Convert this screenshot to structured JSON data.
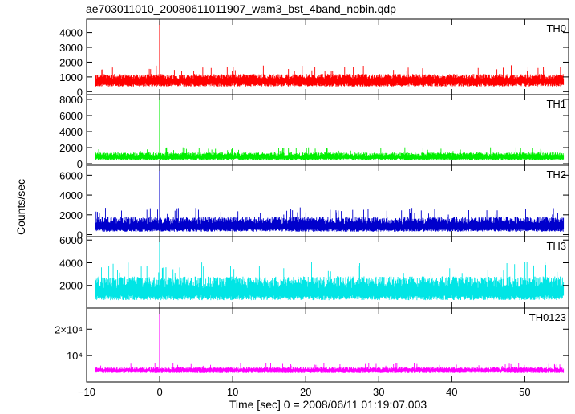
{
  "chart_data": {
    "type": "line",
    "title": "ae703011010_20080611011907_wam3_bst_4band_nobin.qdp",
    "xlabel": "Time [sec] 0 = 2008/06/11 01:19:07.003",
    "ylabel": "Counts/sec",
    "xlim": [
      -10,
      56
    ],
    "x_range": [
      -8.8,
      55.3
    ],
    "x_ticks": [
      -10,
      0,
      10,
      20,
      30,
      40,
      50
    ],
    "x_tick_labels": [
      "−10",
      "0",
      "10",
      "20",
      "30",
      "40",
      "50"
    ],
    "grid": false,
    "panels": [
      {
        "name": "TH0",
        "color": "#ff0000",
        "ylim": [
          -200,
          4900
        ],
        "ticks": [
          0,
          1000,
          2000,
          3000,
          4000
        ],
        "tick_labels": [
          "0",
          "1000",
          "2000",
          "3000",
          "4000"
        ],
        "baseline": 700,
        "noise_low": 350,
        "noise_high": 1200,
        "peak": {
          "x": 0,
          "y": 4800
        }
      },
      {
        "name": "TH1",
        "color": "#00ee00",
        "ylim": [
          -200,
          8600
        ],
        "ticks": [
          0,
          2000,
          4000,
          6000,
          8000
        ],
        "tick_labels": [
          "0",
          "2000",
          "4000",
          "6000",
          "8000"
        ],
        "baseline": 800,
        "noise_low": 450,
        "noise_high": 1400,
        "peak": {
          "x": 0,
          "y": 8300
        }
      },
      {
        "name": "TH2",
        "color": "#0000cc",
        "ylim": [
          -200,
          7000
        ],
        "ticks": [
          0,
          2000,
          4000,
          6000
        ],
        "tick_labels": [
          "0",
          "2000",
          "4000",
          "6000"
        ],
        "baseline": 800,
        "noise_low": 300,
        "noise_high": 1800,
        "peak": {
          "x": 0,
          "y": 6900
        }
      },
      {
        "name": "TH3",
        "color": "#00e5e5",
        "ylim": [
          0,
          6300
        ],
        "ticks": [
          2000,
          4000,
          6000
        ],
        "tick_labels": [
          "2000",
          "4000",
          "6000"
        ],
        "baseline": 1400,
        "noise_low": 700,
        "noise_high": 2800,
        "peak": {
          "x": 0,
          "y": 6300
        }
      },
      {
        "name": "TH0123",
        "color": "#ff00ff",
        "ylim": [
          0,
          28000
        ],
        "ticks": [
          10000,
          20000
        ],
        "tick_labels": [
          "10⁴",
          "2×10⁴"
        ],
        "baseline": 4300,
        "noise_low": 3400,
        "noise_high": 5600,
        "peak": {
          "x": 0,
          "y": 28000
        }
      }
    ]
  }
}
